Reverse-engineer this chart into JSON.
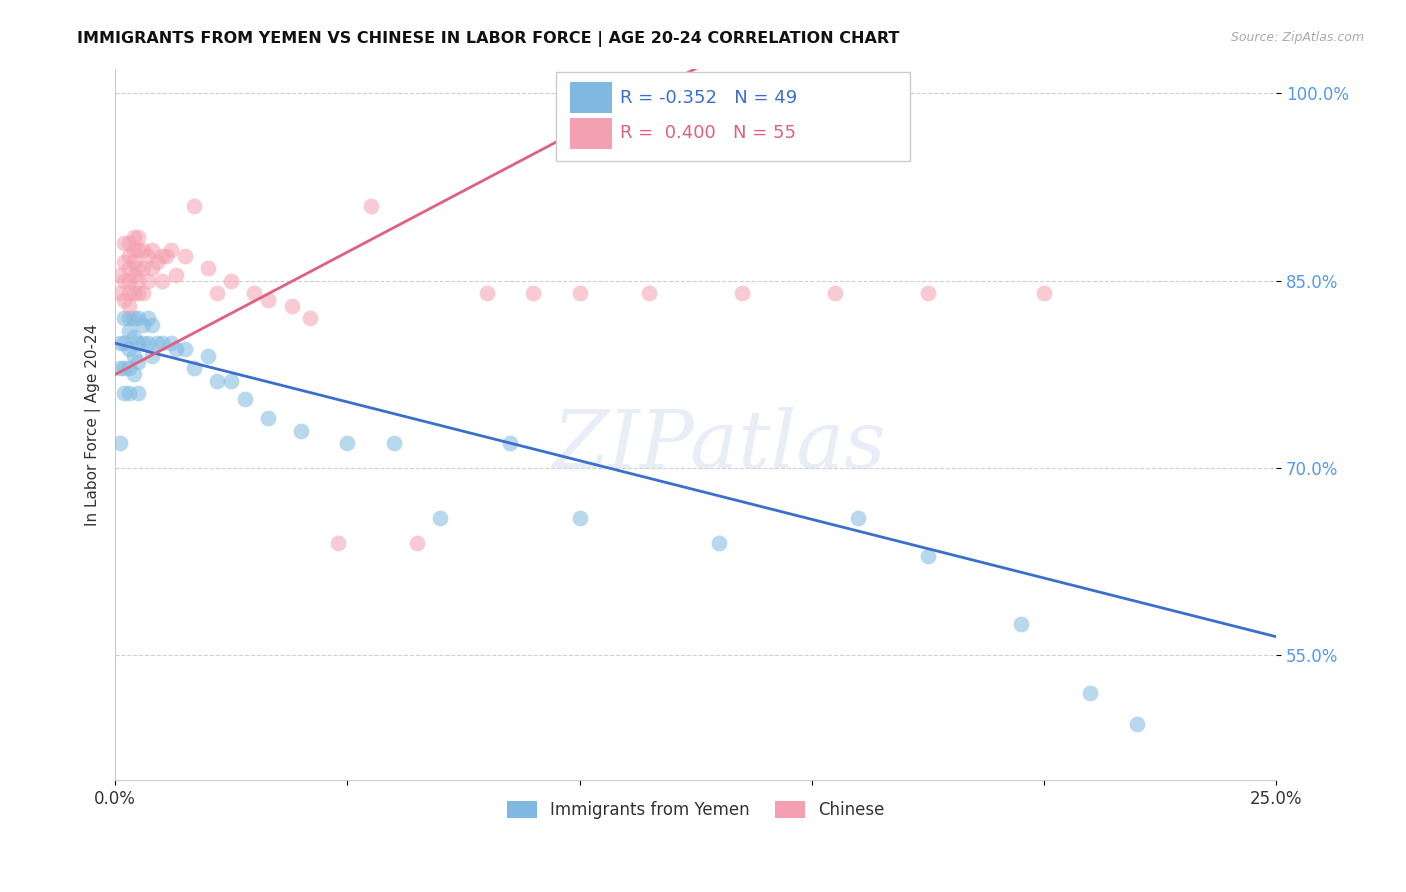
{
  "title": "IMMIGRANTS FROM YEMEN VS CHINESE IN LABOR FORCE | AGE 20-24 CORRELATION CHART",
  "source": "Source: ZipAtlas.com",
  "ylabel": "In Labor Force | Age 20-24",
  "xlim": [
    0.0,
    0.25
  ],
  "ylim": [
    0.45,
    1.02
  ],
  "yticks": [
    0.55,
    0.7,
    0.85,
    1.0
  ],
  "ytick_labels": [
    "55.0%",
    "70.0%",
    "85.0%",
    "100.0%"
  ],
  "xticks": [
    0.0,
    0.05,
    0.1,
    0.15,
    0.2,
    0.25
  ],
  "xtick_labels": [
    "0.0%",
    "",
    "",
    "",
    "",
    "25.0%"
  ],
  "legend_r_yemen": "-0.352",
  "legend_n_yemen": "49",
  "legend_r_chinese": "0.400",
  "legend_n_chinese": "55",
  "background_color": "#ffffff",
  "grid_color": "#d0d0d0",
  "watermark": "ZIPatlas",
  "blue_color": "#7fb8e0",
  "pink_color": "#f4a0b0",
  "blue_line_color": "#3a6fcc",
  "pink_line_color": "#e06080",
  "blue_line_x0": 0.0,
  "blue_line_y0": 0.8,
  "blue_line_x1": 0.25,
  "blue_line_y1": 0.565,
  "pink_line_x0": 0.0,
  "pink_line_y0": 0.775,
  "pink_line_x1": 0.125,
  "pink_line_y1": 1.02,
  "yemen_x": [
    0.001,
    0.001,
    0.001,
    0.002,
    0.002,
    0.002,
    0.002,
    0.003,
    0.003,
    0.003,
    0.003,
    0.003,
    0.004,
    0.004,
    0.004,
    0.004,
    0.005,
    0.005,
    0.005,
    0.005,
    0.006,
    0.006,
    0.007,
    0.007,
    0.008,
    0.008,
    0.009,
    0.01,
    0.012,
    0.013,
    0.015,
    0.017,
    0.02,
    0.022,
    0.025,
    0.028,
    0.033,
    0.04,
    0.05,
    0.06,
    0.07,
    0.085,
    0.1,
    0.13,
    0.16,
    0.175,
    0.195,
    0.21,
    0.22
  ],
  "yemen_y": [
    0.8,
    0.78,
    0.72,
    0.82,
    0.8,
    0.78,
    0.76,
    0.82,
    0.81,
    0.795,
    0.78,
    0.76,
    0.82,
    0.805,
    0.79,
    0.775,
    0.82,
    0.8,
    0.785,
    0.76,
    0.815,
    0.8,
    0.82,
    0.8,
    0.815,
    0.79,
    0.8,
    0.8,
    0.8,
    0.795,
    0.795,
    0.78,
    0.79,
    0.77,
    0.77,
    0.755,
    0.74,
    0.73,
    0.72,
    0.72,
    0.66,
    0.72,
    0.66,
    0.64,
    0.66,
    0.63,
    0.575,
    0.52,
    0.495
  ],
  "chinese_x": [
    0.001,
    0.001,
    0.002,
    0.002,
    0.002,
    0.002,
    0.003,
    0.003,
    0.003,
    0.003,
    0.003,
    0.003,
    0.004,
    0.004,
    0.004,
    0.004,
    0.004,
    0.005,
    0.005,
    0.005,
    0.005,
    0.005,
    0.006,
    0.006,
    0.006,
    0.007,
    0.007,
    0.008,
    0.008,
    0.009,
    0.01,
    0.01,
    0.011,
    0.012,
    0.013,
    0.015,
    0.017,
    0.02,
    0.022,
    0.025,
    0.03,
    0.033,
    0.038,
    0.042,
    0.048,
    0.055,
    0.065,
    0.08,
    0.09,
    0.1,
    0.115,
    0.135,
    0.155,
    0.175,
    0.2
  ],
  "chinese_y": [
    0.855,
    0.84,
    0.88,
    0.865,
    0.85,
    0.835,
    0.88,
    0.87,
    0.86,
    0.85,
    0.84,
    0.83,
    0.885,
    0.875,
    0.865,
    0.855,
    0.84,
    0.885,
    0.875,
    0.86,
    0.85,
    0.84,
    0.875,
    0.86,
    0.84,
    0.87,
    0.85,
    0.875,
    0.86,
    0.865,
    0.87,
    0.85,
    0.87,
    0.875,
    0.855,
    0.87,
    0.91,
    0.86,
    0.84,
    0.85,
    0.84,
    0.835,
    0.83,
    0.82,
    0.64,
    0.91,
    0.64,
    0.84,
    0.84,
    0.84,
    0.84,
    0.84,
    0.84,
    0.84,
    0.84
  ]
}
